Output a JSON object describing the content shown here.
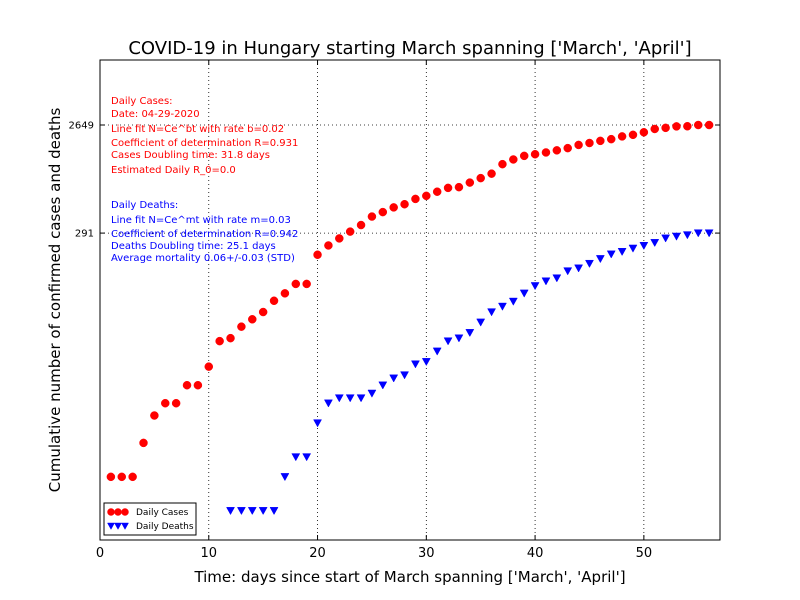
{
  "chart_data": {
    "type": "scatter",
    "title": "COVID-19 in Hungary starting March spanning ['March', 'April']",
    "xlabel": "Time: days since start of March spanning ['March', 'April']",
    "ylabel": "Cumulative number of confirmed cases and deaths",
    "y_scale": "log",
    "grid": "dotted",
    "xlim": [
      0,
      57
    ],
    "ylim": [
      0.55,
      10000
    ],
    "x_ticks": [
      0,
      10,
      20,
      30,
      40,
      50
    ],
    "y_ticks": [
      {
        "value": 2649,
        "label": "2649"
      },
      {
        "value": 291,
        "label": "291"
      }
    ],
    "legend_position": "lower-left",
    "series": [
      {
        "name": "Daily Cases",
        "marker": "circle",
        "color": "#ff0000",
        "x": [
          1,
          2,
          3,
          4,
          5,
          6,
          7,
          8,
          9,
          10,
          11,
          12,
          13,
          14,
          15,
          16,
          17,
          18,
          19,
          20,
          21,
          22,
          23,
          24,
          25,
          26,
          27,
          28,
          29,
          30,
          31,
          32,
          33,
          34,
          35,
          36,
          37,
          38,
          39,
          40,
          41,
          42,
          43,
          44,
          45,
          46,
          47,
          48,
          49,
          50,
          51,
          52,
          53,
          54,
          55,
          56
        ],
        "y": [
          2,
          2,
          2,
          4,
          7,
          9,
          9,
          13,
          13,
          19,
          32,
          34,
          43,
          50,
          58,
          73,
          85,
          103,
          103,
          187,
          226,
          261,
          300,
          343,
          408,
          447,
          492,
          525,
          585,
          623,
          678,
          733,
          744,
          817,
          895,
          980,
          1190,
          1310,
          1410,
          1458,
          1512,
          1579,
          1652,
          1763,
          1834,
          1916,
          1984,
          2098,
          2168,
          2284,
          2443,
          2500,
          2575,
          2583,
          2649,
          2649
        ]
      },
      {
        "name": "Daily Deaths",
        "marker": "triangle-down",
        "color": "#0000ff",
        "x": [
          12,
          13,
          14,
          15,
          16,
          17,
          18,
          19,
          20,
          21,
          22,
          23,
          24,
          25,
          26,
          27,
          28,
          29,
          30,
          31,
          32,
          33,
          34,
          35,
          36,
          37,
          38,
          39,
          40,
          41,
          42,
          43,
          44,
          45,
          46,
          47,
          48,
          49,
          50,
          51,
          52,
          53,
          54,
          55,
          56
        ],
        "y": [
          1,
          1,
          1,
          1,
          1,
          2,
          3,
          3,
          6,
          9,
          10,
          10,
          10,
          11,
          13,
          15,
          16,
          20,
          21,
          26,
          32,
          34,
          38,
          47,
          58,
          65,
          72,
          85,
          99,
          109,
          116,
          134,
          142,
          156,
          172,
          189,
          199,
          213,
          225,
          239,
          262,
          272,
          280,
          291,
          291
        ]
      }
    ],
    "annotations": {
      "cases": {
        "color": "#ff0000",
        "lines": [
          "Daily Cases:",
          "Date: 04-29-2020",
          "Line fit N=Ce^bt with rate b=0.02",
          "Coefficient of determination R=0.931",
          "Cases Doubling time: 31.8 days",
          "Estimated Daily R_0=0.0"
        ]
      },
      "deaths": {
        "color": "#0000ff",
        "lines": [
          "Daily Deaths:",
          "Line fit N=Ce^mt with rate m=0.03",
          "Coefficient of determination R=0.942",
          "Deaths Doubling time: 25.1 days",
          "Average mortality 0.06+/-0.03 (STD)"
        ]
      }
    }
  }
}
